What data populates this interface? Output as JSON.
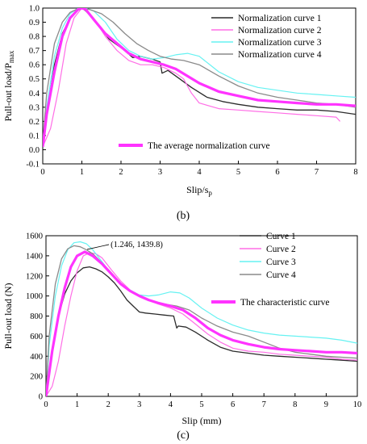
{
  "chart_data": [
    {
      "type": "line",
      "panel_label": "(b)",
      "xlabel": "Slip/s",
      "xlabel_sub": "p",
      "ylabel": "Pull-out load/P",
      "ylabel_sub": "max",
      "xlim": [
        0,
        8
      ],
      "ylim": [
        -0.1,
        1.0
      ],
      "xticks": [
        0,
        1,
        2,
        3,
        4,
        5,
        6,
        7,
        8
      ],
      "yticks": [
        -0.1,
        0.0,
        0.1,
        0.2,
        0.3,
        0.4,
        0.5,
        0.6,
        0.7,
        0.8,
        0.9,
        1.0
      ],
      "ytick_labels": [
        "-0.1",
        "0.0",
        "0.1",
        "0.2",
        "0.3",
        "0.4",
        "0.5",
        "0.6",
        "0.7",
        "0.8",
        "0.9",
        "1.0"
      ],
      "grid": false,
      "legend_placement": "top-right",
      "series": [
        {
          "name": "Normalization curve 1",
          "color": "#2b2b2b",
          "width": 1.3,
          "x": [
            0,
            0.1,
            0.3,
            0.5,
            0.7,
            0.9,
            1.0,
            1.1,
            1.3,
            1.5,
            1.7,
            1.9,
            2.1,
            2.3,
            2.5,
            2.8,
            3.0,
            3.05,
            3.2,
            3.5,
            3.8,
            4.2,
            4.6,
            5.0,
            5.5,
            6.0,
            6.5,
            7.0,
            7.5,
            8.0
          ],
          "y": [
            0.03,
            0.25,
            0.6,
            0.82,
            0.93,
            0.99,
            1.0,
            0.98,
            0.92,
            0.85,
            0.78,
            0.74,
            0.7,
            0.65,
            0.66,
            0.64,
            0.62,
            0.54,
            0.56,
            0.5,
            0.44,
            0.37,
            0.34,
            0.32,
            0.3,
            0.29,
            0.28,
            0.28,
            0.27,
            0.25
          ]
        },
        {
          "name": "Normalization curve 2",
          "color": "#ff6ee6",
          "width": 1.2,
          "x": [
            0,
            0.2,
            0.4,
            0.6,
            0.8,
            1.0,
            1.1,
            1.3,
            1.6,
            1.9,
            2.2,
            2.5,
            2.8,
            3.1,
            3.4,
            3.6,
            3.8,
            4.0,
            4.5,
            5.0,
            5.5,
            6.0,
            6.5,
            7.0,
            7.5,
            7.6
          ],
          "y": [
            0.02,
            0.15,
            0.42,
            0.75,
            0.93,
            1.0,
            0.99,
            0.93,
            0.8,
            0.7,
            0.63,
            0.6,
            0.6,
            0.58,
            0.54,
            0.5,
            0.4,
            0.33,
            0.29,
            0.28,
            0.27,
            0.26,
            0.25,
            0.24,
            0.23,
            0.2
          ]
        },
        {
          "name": "Normalization curve 3",
          "color": "#66f2f2",
          "width": 1.2,
          "x": [
            0,
            0.1,
            0.3,
            0.5,
            0.7,
            0.9,
            1.1,
            1.3,
            1.6,
            1.9,
            2.2,
            2.5,
            2.8,
            3.1,
            3.4,
            3.7,
            4.0,
            4.5,
            5.0,
            5.5,
            6.0,
            6.5,
            7.0,
            7.5,
            8.0
          ],
          "y": [
            0.05,
            0.3,
            0.66,
            0.86,
            0.96,
            1.0,
            1.0,
            0.98,
            0.9,
            0.78,
            0.7,
            0.66,
            0.64,
            0.65,
            0.67,
            0.68,
            0.66,
            0.55,
            0.48,
            0.44,
            0.42,
            0.4,
            0.39,
            0.38,
            0.37
          ]
        },
        {
          "name": "Normalization curve 4",
          "color": "#8a8a8a",
          "width": 1.3,
          "x": [
            0,
            0.1,
            0.3,
            0.5,
            0.7,
            0.9,
            1.0,
            1.2,
            1.5,
            1.8,
            2.1,
            2.4,
            2.7,
            3.0,
            3.3,
            3.6,
            4.0,
            4.5,
            5.0,
            5.5,
            6.0,
            6.5,
            7.0,
            7.5,
            8.0
          ],
          "y": [
            0.05,
            0.4,
            0.75,
            0.9,
            0.97,
            0.995,
            1.0,
            0.99,
            0.96,
            0.9,
            0.82,
            0.75,
            0.7,
            0.66,
            0.64,
            0.63,
            0.6,
            0.52,
            0.45,
            0.4,
            0.37,
            0.35,
            0.33,
            0.32,
            0.3
          ]
        },
        {
          "name": "The average normalization curve",
          "color": "#ff33ff",
          "width": 3.2,
          "x": [
            0,
            0.1,
            0.3,
            0.5,
            0.7,
            0.9,
            1.0,
            1.1,
            1.3,
            1.6,
            1.9,
            2.2,
            2.5,
            2.8,
            3.1,
            3.4,
            3.7,
            4.0,
            4.5,
            5.0,
            5.5,
            6.0,
            6.5,
            7.0,
            7.5,
            8.0
          ],
          "y": [
            0.02,
            0.25,
            0.55,
            0.8,
            0.93,
            0.99,
            1.0,
            0.99,
            0.92,
            0.82,
            0.75,
            0.68,
            0.64,
            0.62,
            0.6,
            0.57,
            0.52,
            0.47,
            0.41,
            0.38,
            0.35,
            0.34,
            0.33,
            0.32,
            0.32,
            0.31
          ]
        }
      ]
    },
    {
      "type": "line",
      "panel_label": "(c)",
      "xlabel": "Slip (mm)",
      "ylabel": "Pull-out load (N)",
      "xlim": [
        0,
        10
      ],
      "ylim": [
        0,
        1600
      ],
      "xticks": [
        0,
        1,
        2,
        3,
        4,
        5,
        6,
        7,
        8,
        9,
        10
      ],
      "yticks": [
        0,
        200,
        400,
        600,
        800,
        1000,
        1200,
        1400,
        1600
      ],
      "grid": false,
      "legend_placement": "top-right",
      "annotation": {
        "text": "(1.246, 1439.8)",
        "x": 1.246,
        "y": 1439.8
      },
      "series": [
        {
          "name": "Curve 1",
          "color": "#2b2b2b",
          "width": 1.3,
          "x": [
            0,
            0.2,
            0.4,
            0.6,
            0.8,
            1.0,
            1.2,
            1.4,
            1.6,
            1.8,
            2.0,
            2.2,
            2.4,
            2.6,
            2.8,
            3.0,
            3.2,
            3.5,
            3.8,
            4.1,
            4.2,
            4.25,
            4.5,
            4.8,
            5.2,
            5.6,
            6.0,
            6.5,
            7.0,
            7.5,
            8.0,
            8.5,
            9.0,
            9.5,
            10.0
          ],
          "y": [
            0,
            450,
            800,
            1020,
            1150,
            1230,
            1280,
            1290,
            1270,
            1240,
            1190,
            1130,
            1050,
            960,
            900,
            840,
            830,
            820,
            810,
            800,
            680,
            700,
            690,
            640,
            560,
            490,
            450,
            430,
            410,
            400,
            390,
            380,
            370,
            360,
            350
          ]
        },
        {
          "name": "Curve 2",
          "color": "#ff6ee6",
          "width": 1.2,
          "x": [
            0,
            0.2,
            0.4,
            0.6,
            0.8,
            1.0,
            1.2,
            1.4,
            1.6,
            1.8,
            2.1,
            2.4,
            2.7,
            3.0,
            3.3,
            3.6,
            4.0,
            4.4,
            4.8,
            5.2,
            5.6,
            6.0,
            6.5,
            7.0,
            7.5,
            8.0,
            8.5,
            9.0,
            9.5,
            10.0
          ],
          "y": [
            0,
            100,
            350,
            700,
            1000,
            1250,
            1400,
            1430,
            1420,
            1380,
            1260,
            1150,
            1060,
            1000,
            960,
            920,
            880,
            820,
            720,
            620,
            540,
            480,
            450,
            440,
            420,
            410,
            400,
            390,
            370,
            360
          ]
        },
        {
          "name": "Curve 3",
          "color": "#66f2f2",
          "width": 1.2,
          "x": [
            0,
            0.1,
            0.3,
            0.5,
            0.7,
            0.9,
            1.1,
            1.3,
            1.5,
            1.8,
            2.1,
            2.4,
            2.7,
            3.0,
            3.3,
            3.6,
            4.0,
            4.3,
            4.6,
            5.0,
            5.5,
            6.0,
            6.5,
            7.0,
            7.5,
            8.0,
            8.5,
            9.0,
            9.5,
            10.0
          ],
          "y": [
            0,
            500,
            1000,
            1300,
            1460,
            1530,
            1540,
            1520,
            1460,
            1340,
            1220,
            1120,
            1060,
            1010,
            1000,
            1010,
            1040,
            1030,
            980,
            880,
            780,
            710,
            660,
            630,
            610,
            600,
            590,
            580,
            560,
            530
          ]
        },
        {
          "name": "Curve 4",
          "color": "#8a8a8a",
          "width": 1.3,
          "x": [
            0,
            0.1,
            0.3,
            0.5,
            0.7,
            0.9,
            1.1,
            1.3,
            1.5,
            1.8,
            2.1,
            2.4,
            2.7,
            3.0,
            3.4,
            3.8,
            4.2,
            4.6,
            5.0,
            5.5,
            6.0,
            6.5,
            7.0,
            7.5,
            8.0,
            8.5,
            9.0,
            9.5,
            10.0
          ],
          "y": [
            0,
            600,
            1120,
            1370,
            1470,
            1500,
            1490,
            1460,
            1420,
            1330,
            1230,
            1130,
            1050,
            1000,
            950,
            920,
            900,
            860,
            780,
            700,
            640,
            600,
            540,
            480,
            440,
            420,
            400,
            390,
            380
          ]
        },
        {
          "name": "The characteristic curve",
          "color": "#ff33ff",
          "width": 3.2,
          "x": [
            0,
            0.2,
            0.4,
            0.6,
            0.8,
            1.0,
            1.246,
            1.5,
            1.8,
            2.1,
            2.4,
            2.7,
            3.0,
            3.3,
            3.6,
            4.0,
            4.4,
            4.8,
            5.2,
            5.6,
            6.0,
            6.5,
            7.0,
            7.5,
            8.0,
            8.5,
            9.0,
            9.5,
            10.0
          ],
          "y": [
            0,
            450,
            800,
            1080,
            1290,
            1400,
            1439.8,
            1400,
            1320,
            1220,
            1120,
            1050,
            1000,
            960,
            930,
            900,
            860,
            780,
            680,
            610,
            560,
            520,
            490,
            470,
            460,
            450,
            440,
            440,
            430
          ]
        }
      ]
    }
  ]
}
